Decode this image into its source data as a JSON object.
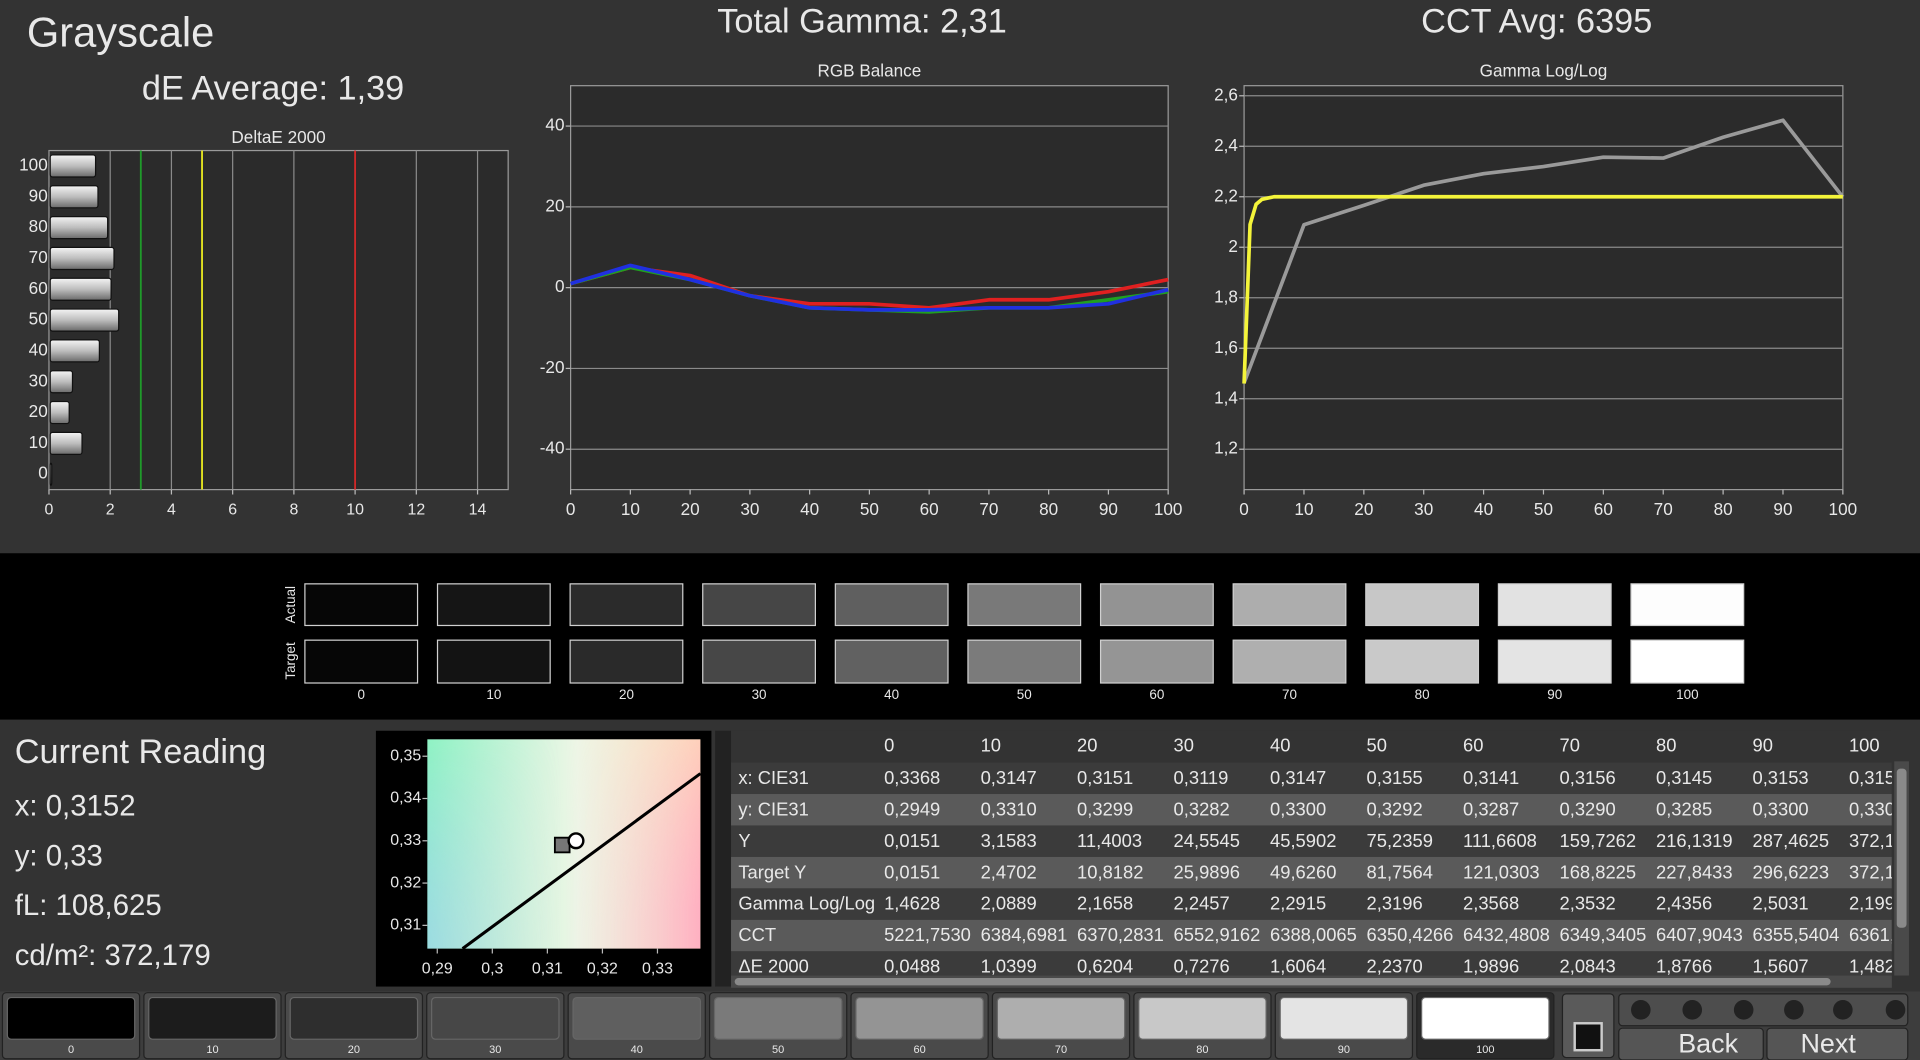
{
  "header": {
    "title": "Grayscale",
    "de_average": "dE Average: 1,39",
    "total_gamma": "Total Gamma: 2,31",
    "cct_avg": "CCT Avg: 6395"
  },
  "chart_data": [
    {
      "type": "hbar",
      "title": "DeltaE 2000",
      "categories": [
        "100",
        "90",
        "80",
        "70",
        "60",
        "50",
        "40",
        "30",
        "20",
        "10",
        "0"
      ],
      "values": [
        1.482,
        1.5607,
        1.8766,
        2.0843,
        1.9896,
        2.237,
        1.6064,
        0.7276,
        0.6204,
        1.0399,
        0.0488
      ],
      "xlim": [
        0,
        15
      ],
      "xticks": [
        0,
        2,
        4,
        6,
        8,
        10,
        12,
        14
      ],
      "grid": "x",
      "reference_lines": [
        {
          "value": 3,
          "color": "#1f9a2a"
        },
        {
          "value": 5,
          "color": "#e8e820"
        },
        {
          "value": 10,
          "color": "#d02828"
        }
      ]
    },
    {
      "type": "line",
      "title": "RGB Balance",
      "x": [
        0,
        10,
        20,
        30,
        40,
        50,
        60,
        70,
        80,
        90,
        100
      ],
      "series": [
        {
          "color": "#e02020",
          "values": [
            1,
            5,
            3,
            -2,
            -4,
            -4,
            -5,
            -3,
            -3,
            -1,
            2
          ]
        },
        {
          "color": "#20a020",
          "values": [
            1,
            5,
            2,
            -2,
            -5,
            -5.5,
            -6,
            -5,
            -5,
            -3,
            -1
          ]
        },
        {
          "color": "#2030e0",
          "values": [
            1,
            5.5,
            2,
            -2,
            -5,
            -5.5,
            -5.5,
            -5,
            -5,
            -4,
            -0.5
          ]
        }
      ],
      "xlim": [
        0,
        100
      ],
      "xticks": [
        0,
        10,
        20,
        30,
        40,
        50,
        60,
        70,
        80,
        90,
        100
      ],
      "ylim": [
        -50,
        50
      ],
      "yticks": [
        -40,
        -20,
        0,
        20,
        40
      ],
      "grid": "y"
    },
    {
      "type": "line",
      "title": "Gamma Log/Log",
      "series": [
        {
          "color": "#9a9a9a",
          "x": [
            0,
            10,
            20,
            30,
            40,
            50,
            60,
            70,
            80,
            90,
            100
          ],
          "values": [
            1.4628,
            2.0889,
            2.1658,
            2.2457,
            2.2915,
            2.3196,
            2.3568,
            2.3532,
            2.4356,
            2.5031,
            2.199
          ]
        },
        {
          "color": "#f4f43a",
          "x": [
            0,
            1,
            2,
            3,
            5,
            10,
            100
          ],
          "values": [
            1.46,
            2.09,
            2.17,
            2.19,
            2.2,
            2.2,
            2.2
          ]
        }
      ],
      "xlim": [
        0,
        100
      ],
      "xticks": [
        0,
        10,
        20,
        30,
        40,
        50,
        60,
        70,
        80,
        90,
        100
      ],
      "ylim": [
        1.04,
        2.64
      ],
      "yticks": [
        {
          "value": 1.2,
          "label": "1,2"
        },
        {
          "value": 1.4,
          "label": "1,4"
        },
        {
          "value": 1.6,
          "label": "1,6"
        },
        {
          "value": 1.8,
          "label": "1,8"
        },
        2,
        {
          "value": 2.2,
          "label": "2,2"
        },
        {
          "value": 2.4,
          "label": "2,4"
        },
        {
          "value": 2.6,
          "label": "2,6"
        }
      ],
      "grid": "y"
    },
    {
      "type": "scatter",
      "series": [
        {
          "color": "#000000",
          "x": [
            0.2946,
            0.3378
          ],
          "values": [
            0.3045,
            0.3459
          ]
        }
      ],
      "target": {
        "x": 0.3127,
        "y": 0.329
      },
      "measured": {
        "x": 0.3152,
        "y": 0.33
      },
      "xlim": [
        0.2882,
        0.3378
      ],
      "xticks": [
        {
          "value": 0.29,
          "label": "0,29"
        },
        {
          "value": 0.3,
          "label": "0,3"
        },
        {
          "value": 0.31,
          "label": "0,31"
        },
        {
          "value": 0.32,
          "label": "0,32"
        },
        {
          "value": 0.33,
          "label": "0,33"
        }
      ],
      "ylim": [
        0.3045,
        0.354
      ],
      "yticks": [
        {
          "value": 0.31,
          "label": "0,31"
        },
        {
          "value": 0.32,
          "label": "0,32"
        },
        {
          "value": 0.33,
          "label": "0,33"
        },
        {
          "value": 0.34,
          "label": "0,34"
        },
        {
          "value": 0.35,
          "label": "0,35"
        }
      ]
    }
  ],
  "swatches": {
    "row_labels": [
      "Actual",
      "Target"
    ],
    "labels": [
      "0",
      "10",
      "20",
      "30",
      "40",
      "50",
      "60",
      "70",
      "80",
      "90",
      "100"
    ],
    "actual_colors": [
      "#060606",
      "#151515",
      "#2b2b2b",
      "#464646",
      "#5f5f5f",
      "#797979",
      "#939393",
      "#adadad",
      "#c7c7c7",
      "#e2e2e2",
      "#fdfdfd"
    ],
    "target_colors": [
      "#060606",
      "#131313",
      "#2a2a2a",
      "#474747",
      "#616161",
      "#7b7b7b",
      "#959595",
      "#afafaf",
      "#c9c9c9",
      "#e4e4e4",
      "#ffffff"
    ]
  },
  "current_reading": {
    "title": "Current Reading",
    "lines": [
      "x: 0,3152",
      "y: 0,33",
      "fL: 108,625",
      "cd/m²: 372,179"
    ]
  },
  "table": {
    "header": [
      "0",
      "10",
      "20",
      "30",
      "40",
      "50",
      "60",
      "70",
      "80",
      "90",
      "100"
    ],
    "rows": [
      [
        "x: CIE31",
        "0,3368",
        "0,3147",
        "0,3151",
        "0,3119",
        "0,3147",
        "0,3155",
        "0,3141",
        "0,3156",
        "0,3145",
        "0,3153",
        "0,315"
      ],
      [
        "y: CIE31",
        "0,2949",
        "0,3310",
        "0,3299",
        "0,3282",
        "0,3300",
        "0,3292",
        "0,3287",
        "0,3290",
        "0,3285",
        "0,3300",
        "0,330"
      ],
      [
        "Y",
        "0,0151",
        "3,1583",
        "11,4003",
        "24,5545",
        "45,5902",
        "75,2359",
        "111,6608",
        "159,7262",
        "216,1319",
        "287,4625",
        "372,1"
      ],
      [
        "Target Y",
        "0,0151",
        "2,4702",
        "10,8182",
        "25,9896",
        "49,6260",
        "81,7564",
        "121,0303",
        "168,8225",
        "227,8433",
        "296,6223",
        "372,1"
      ],
      [
        "Gamma Log/Log",
        "1,4628",
        "2,0889",
        "2,1658",
        "2,2457",
        "2,2915",
        "2,3196",
        "2,3568",
        "2,3532",
        "2,4356",
        "2,5031",
        "2,199"
      ],
      [
        "CCT",
        "5221,7530",
        "6384,6981",
        "6370,2831",
        "6552,9162",
        "6388,0065",
        "6350,4266",
        "6432,4808",
        "6349,3405",
        "6407,9043",
        "6355,5404",
        "6361,"
      ],
      [
        "ΔE 2000",
        "0,0488",
        "1,0399",
        "0,6204",
        "0,7276",
        "1,6064",
        "2,2370",
        "1,9896",
        "2,0843",
        "1,8766",
        "1,5607",
        "1,482"
      ]
    ]
  },
  "footer": {
    "labels": [
      "0",
      "10",
      "20",
      "30",
      "40",
      "50",
      "60",
      "70",
      "80",
      "90",
      "100"
    ],
    "colors": [
      "#000000",
      "#1c1c1c",
      "#2e2e2e",
      "#474747",
      "#5f5f5f",
      "#7a7a7a",
      "#949494",
      "#aeaeae",
      "#c8c8c8",
      "#e4e4e4",
      "#ffffff"
    ],
    "back": "Back",
    "next": "Next"
  }
}
